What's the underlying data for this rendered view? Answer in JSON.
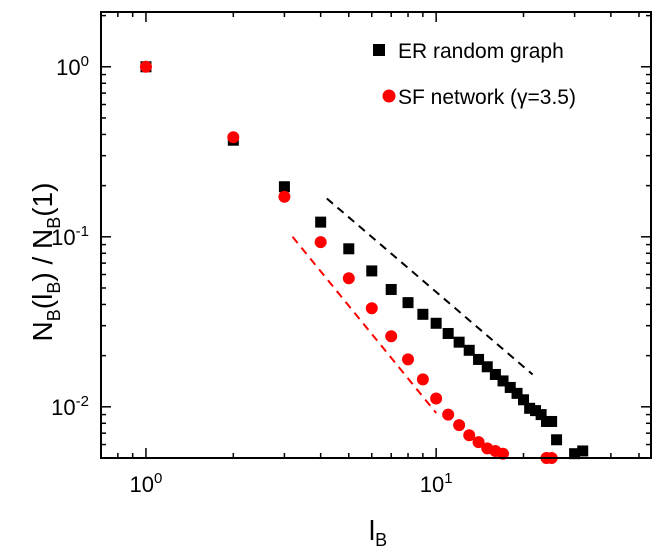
{
  "chart_data": {
    "type": "scatter",
    "x_scale": "log",
    "y_scale": "log",
    "xlim": [
      0.7,
      55
    ],
    "ylim": [
      0.005,
      2.1
    ],
    "grid": false,
    "legend_position": "top-right",
    "xlabel": {
      "main": "l",
      "sub": "B"
    },
    "ylabel": {
      "n1": "N",
      "s1": "B",
      "p1": "(l",
      "s2": "B",
      "p2": ") / N",
      "s3": "B",
      "p3": "(1)"
    },
    "x_major_ticks": [
      {
        "value": 1,
        "base": "10",
        "exp": "0"
      },
      {
        "value": 10,
        "base": "10",
        "exp": "1"
      }
    ],
    "y_major_ticks": [
      {
        "value": 1,
        "base": "10",
        "exp": "0"
      },
      {
        "value": 0.1,
        "base": "10",
        "exp": "-1"
      },
      {
        "value": 0.01,
        "base": "10",
        "exp": "-2"
      }
    ],
    "series": [
      {
        "name": "ER random graph",
        "marker": "square",
        "color": "#000000",
        "x": [
          1,
          2,
          3,
          4,
          5,
          6,
          7,
          8,
          9,
          10,
          11,
          12,
          13,
          14,
          15,
          16,
          17,
          18,
          19,
          20,
          21,
          22,
          23,
          24,
          25,
          26,
          30,
          32
        ],
        "y": [
          1.0,
          0.37,
          0.197,
          0.122,
          0.085,
          0.063,
          0.049,
          0.041,
          0.035,
          0.031,
          0.027,
          0.024,
          0.0215,
          0.019,
          0.0172,
          0.0155,
          0.0142,
          0.013,
          0.012,
          0.011,
          0.0098,
          0.0095,
          0.009,
          0.0082,
          0.0082,
          0.0064,
          0.0053,
          0.0055
        ]
      },
      {
        "name": "SF network (γ=3.5)",
        "marker": "circle",
        "color": "#ff0000",
        "x": [
          1,
          2,
          3,
          4,
          5,
          6,
          7,
          8,
          9,
          10,
          11,
          12,
          13,
          14,
          15,
          16,
          17,
          24,
          25
        ],
        "y": [
          1.0,
          0.385,
          0.172,
          0.093,
          0.057,
          0.038,
          0.026,
          0.019,
          0.0145,
          0.0112,
          0.009,
          0.0078,
          0.0068,
          0.0062,
          0.0057,
          0.0055,
          0.0053,
          0.005,
          0.005
        ]
      }
    ],
    "guides": [
      {
        "color": "#000000",
        "style": "dashed",
        "from": [
          4.2,
          0.168
        ],
        "to": [
          21.5,
          0.0155
        ]
      },
      {
        "color": "#ff0000",
        "style": "dashed",
        "from": [
          3.2,
          0.1
        ],
        "to": [
          10,
          0.0092
        ]
      }
    ]
  }
}
